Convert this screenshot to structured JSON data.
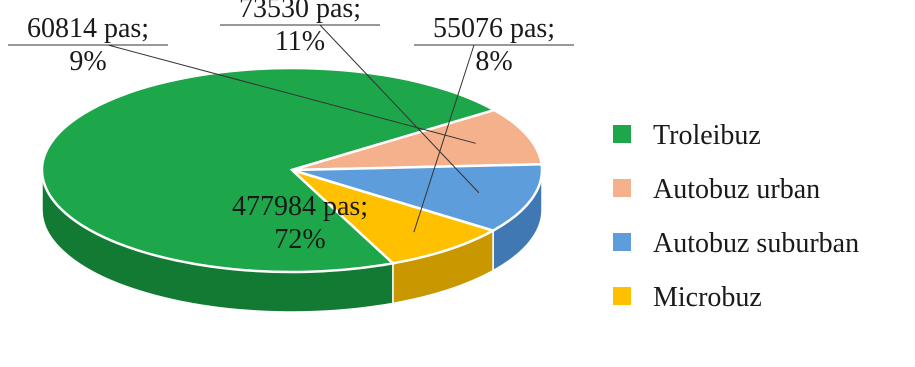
{
  "chart_data": {
    "type": "pie",
    "style": "3d",
    "slices": [
      {
        "name": "Troleibuz",
        "value": 477984,
        "unit": "pas",
        "percent": "72%",
        "color": "#1ea64b",
        "side_color": "#137a33"
      },
      {
        "name": "Autobuz urban",
        "value": 60814,
        "unit": "pas",
        "percent": "9%",
        "color": "#f5b18b",
        "side_color": "#d08a63"
      },
      {
        "name": "Autobuz suburban",
        "value": 73530,
        "unit": "pas",
        "percent": "11%",
        "color": "#5e9ddc",
        "side_color": "#3f78b3"
      },
      {
        "name": "Microbuz",
        "value": 55076,
        "unit": "pas",
        "percent": "8%",
        "color": "#ffc000",
        "side_color": "#c99700"
      }
    ],
    "legend_position": "right"
  }
}
